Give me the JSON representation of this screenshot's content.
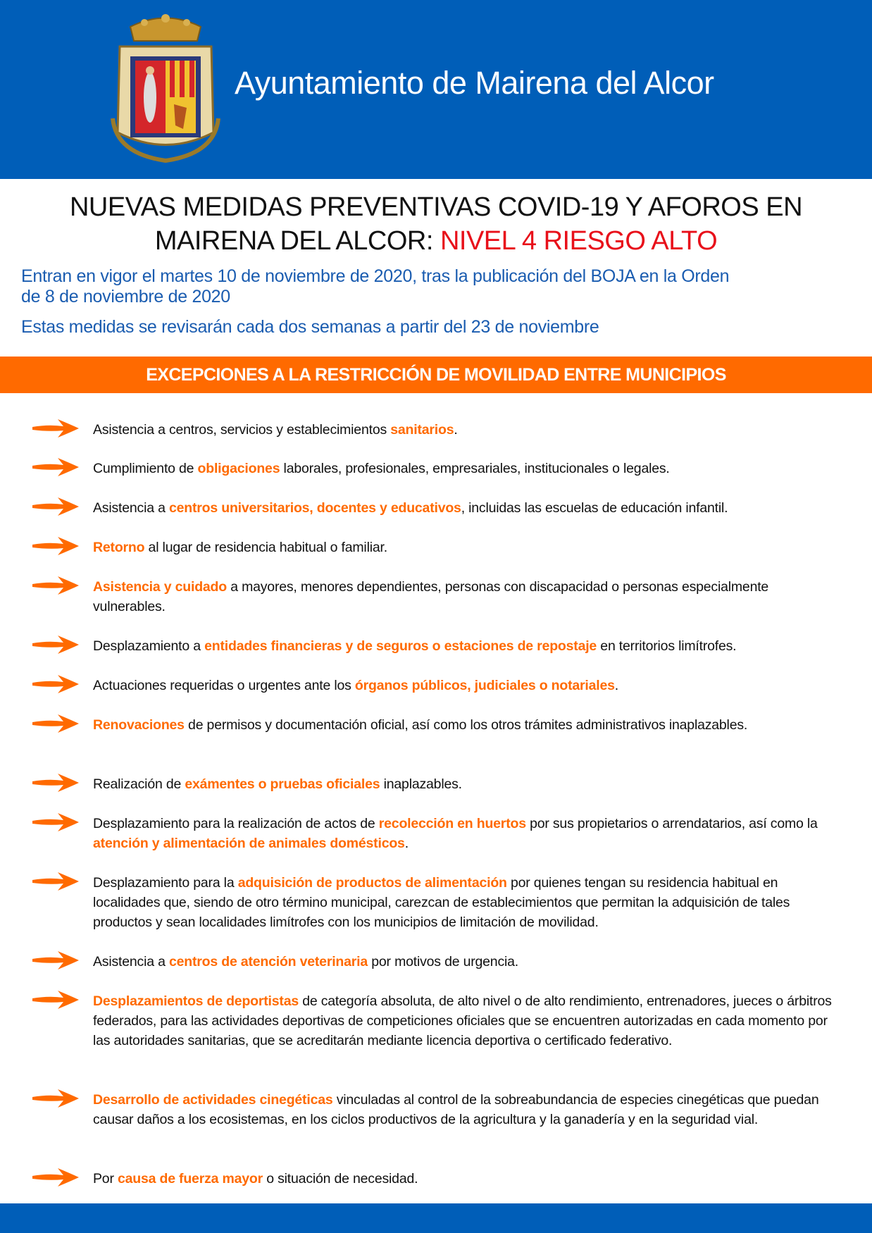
{
  "header": {
    "org_name": "Ayuntamiento de Mairena del Alcor",
    "brand_color": "#005eb8",
    "crest_icon": "municipal-coat-of-arms"
  },
  "title": {
    "line1": "NUEVAS MEDIDAS PREVENTIVAS COVID-19 Y AFOROS EN",
    "line2_prefix": "MAIRENA DEL ALCOR: ",
    "line2_highlight": "NIVEL 4 RIESGO ALTO",
    "highlight_color": "#e8101a"
  },
  "subtitle": {
    "line1": "Entran en vigor el martes 10 de noviembre de 2020, tras la publicación del BOJA en la Orden",
    "line2": "de 8 de noviembre de 2020",
    "line3": "Estas medidas se revisarán cada dos semanas a partir del 23 de noviembre"
  },
  "section": {
    "heading": "EXCEPCIONES A LA RESTRICCIÓN DE MOVILIDAD ENTRE MUNICIPIOS",
    "accent_color": "#ff6a00"
  },
  "items": [
    {
      "segments": [
        [
          "Asistencia a centros, servicios y establecimientos ",
          0
        ],
        [
          "sanitarios",
          1
        ],
        [
          ".",
          0
        ]
      ]
    },
    {
      "segments": [
        [
          "Cumplimiento de ",
          0
        ],
        [
          "obligaciones",
          1
        ],
        [
          " laborales, profesionales, empresariales, institucionales o legales.",
          0
        ]
      ]
    },
    {
      "segments": [
        [
          "Asistencia a ",
          0
        ],
        [
          "centros universitarios, docentes y educativos",
          1
        ],
        [
          ", incluidas las escuelas de educación infantil.",
          0
        ]
      ]
    },
    {
      "segments": [
        [
          "Retorno",
          1
        ],
        [
          " al lugar de residencia habitual o familiar.",
          0
        ]
      ]
    },
    {
      "segments": [
        [
          "Asistencia y cuidado",
          1
        ],
        [
          " a mayores, menores dependientes, personas con discapacidad o personas especialmente vulnerables.",
          0
        ]
      ]
    },
    {
      "segments": [
        [
          "Desplazamiento a ",
          0
        ],
        [
          "entidades financieras y de seguros o estaciones de repostaje",
          1
        ],
        [
          " en territorios limítrofes.",
          0
        ]
      ]
    },
    {
      "segments": [
        [
          "Actuaciones requeridas o urgentes ante los ",
          0
        ],
        [
          "órganos públicos, judiciales o notariales",
          1
        ],
        [
          ".",
          0
        ]
      ]
    },
    {
      "segments": [
        [
          "Renovaciones",
          1
        ],
        [
          " de permisos y documentación oficial, así como los otros trámites administrativos inaplazables.",
          0
        ]
      ]
    },
    {
      "segments": [
        [
          "Realización de ",
          0
        ],
        [
          "exámentes o pruebas oficiales",
          1
        ],
        [
          " inaplazables.",
          0
        ]
      ]
    },
    {
      "segments": [
        [
          "Desplazamiento para la realización de actos de ",
          0
        ],
        [
          "recolección en huertos",
          1
        ],
        [
          " por sus propietarios o arrendatarios, así como la ",
          0
        ],
        [
          "atención y alimentación de animales domésticos",
          1
        ],
        [
          ".",
          0
        ]
      ]
    },
    {
      "segments": [
        [
          "Desplazamiento para la ",
          0
        ],
        [
          "adquisición de productos de alimentación",
          1
        ],
        [
          " por quienes tengan su residencia habitual en localidades que, siendo de otro término municipal, carezcan de establecimientos que permitan la adquisición de tales productos y sean localidades limítrofes con los municipios de limitación de movilidad.",
          0
        ]
      ]
    },
    {
      "segments": [
        [
          "Asistencia a ",
          0
        ],
        [
          "centros de atención veterinaria",
          1
        ],
        [
          " por motivos de urgencia.",
          0
        ]
      ]
    },
    {
      "segments": [
        [
          "Desplazamientos de deportistas",
          1
        ],
        [
          " de categoría absoluta, de alto nivel o de alto rendimiento, entrenadores, jueces o árbitros federados, para las actividades deportivas de competiciones oficiales que se encuentren autorizadas en cada momento por las autoridades sanitarias, que se acreditarán mediante licencia deportiva o certificado federativo.",
          0
        ]
      ]
    },
    {
      "segments": [
        [
          "Desarrollo de actividades cinegéticas",
          1
        ],
        [
          " vinculadas al control de la sobreabundancia de especies cinegéticas que puedan causar daños a los ecosistemas, en los ciclos productivos de la agricultura y la ganadería y en la seguridad vial.",
          0
        ]
      ]
    },
    {
      "segments": [
        [
          "Por ",
          0
        ],
        [
          "causa de fuerza mayor",
          1
        ],
        [
          " o situación de necesidad.",
          0
        ]
      ]
    }
  ]
}
